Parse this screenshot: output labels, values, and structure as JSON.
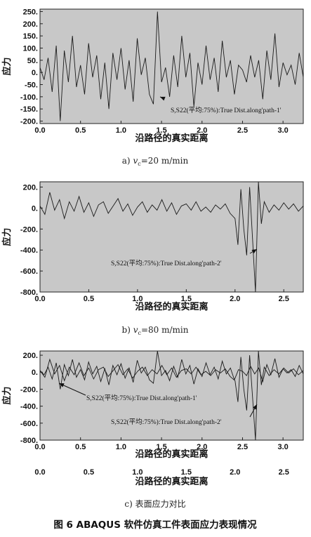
{
  "figure_title": "图 6   ABAQUS 软件仿真工件表面应力表现情况",
  "chart_data": [
    {
      "type": "line",
      "caption": "a)  v_c = 20 m/min",
      "caption_prefix": "a)",
      "caption_var": "v",
      "caption_sub": "c",
      "caption_rest": "=20 m/min",
      "xlabel": "沿路径的真实距离",
      "ylabel": "应力",
      "xlim": [
        0,
        3.25
      ],
      "ylim": [
        -210,
        260
      ],
      "xticks": [
        "0.0",
        "0.5",
        "1.0",
        "1.5",
        "2.0",
        "2.5",
        "3.0"
      ],
      "yticks": [
        "250.",
        "200.",
        "150.",
        "100.",
        "50.",
        "0.",
        "-50.",
        "-100.",
        "-150.",
        "-200."
      ],
      "background": "#c8c8c8",
      "annotations": [
        "S,S22(平均:75%):True Dist.along'path-1'"
      ],
      "series": [
        {
          "x": [
            0,
            0.05,
            0.1,
            0.15,
            0.2,
            0.25,
            0.3,
            0.35,
            0.4,
            0.45,
            0.5,
            0.55,
            0.6,
            0.65,
            0.7,
            0.75,
            0.8,
            0.85,
            0.9,
            0.95,
            1.0,
            1.05,
            1.1,
            1.15,
            1.2,
            1.25,
            1.3,
            1.35,
            1.4,
            1.45,
            1.5,
            1.55,
            1.6,
            1.65,
            1.7,
            1.75,
            1.8,
            1.85,
            1.9,
            1.95,
            2.0,
            2.05,
            2.1,
            2.15,
            2.2,
            2.25,
            2.3,
            2.35,
            2.4,
            2.45,
            2.5,
            2.55,
            2.6,
            2.65,
            2.7,
            2.75,
            2.8,
            2.85,
            2.9,
            2.95,
            3.0,
            3.05,
            3.1,
            3.15,
            3.2,
            3.25
          ],
          "values": [
            20,
            -30,
            60,
            -80,
            110,
            -200,
            90,
            -40,
            150,
            -60,
            30,
            -90,
            120,
            -20,
            70,
            -110,
            40,
            -150,
            80,
            -30,
            100,
            -70,
            50,
            -120,
            140,
            -10,
            60,
            -90,
            -130,
            250,
            -40,
            20,
            -100,
            70,
            -60,
            150,
            -20,
            80,
            -140,
            40,
            -50,
            110,
            -30,
            60,
            -80,
            130,
            -20,
            50,
            -90,
            30,
            10,
            -40,
            70,
            -20,
            50,
            -110,
            90,
            -30,
            160,
            -60,
            40,
            -10,
            30,
            -50,
            80,
            -20
          ]
        }
      ]
    },
    {
      "type": "line",
      "caption": "b)  v_c = 80 m/min",
      "caption_prefix": "b)",
      "caption_var": "v",
      "caption_sub": "c",
      "caption_rest": "=80 m/min",
      "xlabel": "沿路径的真实距离",
      "ylabel": "应力",
      "xlim": [
        0,
        2.7
      ],
      "ylim": [
        -800,
        250
      ],
      "xticks": [
        "0.0",
        "0.5",
        "1.0",
        "1.5",
        "2.0",
        "2.5"
      ],
      "yticks": [
        "200.",
        "0.",
        "-200.",
        "-400.",
        "-600.",
        "-800."
      ],
      "background": "#c8c8c8",
      "annotations": [
        "S,S22(平均:75%):True Dist.along'path-2'"
      ],
      "series": [
        {
          "x": [
            0,
            0.05,
            0.1,
            0.15,
            0.2,
            0.25,
            0.3,
            0.35,
            0.4,
            0.45,
            0.5,
            0.55,
            0.6,
            0.65,
            0.7,
            0.75,
            0.8,
            0.85,
            0.9,
            0.95,
            1.0,
            1.05,
            1.1,
            1.15,
            1.2,
            1.25,
            1.3,
            1.35,
            1.4,
            1.45,
            1.5,
            1.55,
            1.6,
            1.65,
            1.7,
            1.75,
            1.8,
            1.85,
            1.9,
            1.95,
            2.0,
            2.03,
            2.06,
            2.09,
            2.12,
            2.15,
            2.18,
            2.21,
            2.24,
            2.27,
            2.3,
            2.35,
            2.4,
            2.45,
            2.5,
            2.55,
            2.6,
            2.65,
            2.7
          ],
          "values": [
            20,
            -60,
            150,
            -20,
            80,
            -100,
            60,
            -30,
            110,
            -40,
            50,
            -80,
            30,
            60,
            -50,
            20,
            90,
            -30,
            40,
            -70,
            10,
            60,
            -40,
            30,
            -20,
            80,
            -30,
            50,
            -60,
            20,
            40,
            -20,
            60,
            -30,
            10,
            -40,
            30,
            -10,
            40,
            -50,
            -100,
            -350,
            180,
            -200,
            -450,
            200,
            -300,
            -800,
            250,
            -150,
            60,
            -40,
            30,
            -20,
            50,
            -10,
            40,
            -30,
            20
          ]
        }
      ]
    },
    {
      "type": "line",
      "caption": "c)  表面应力对比",
      "caption_prefix": "c)",
      "caption_var": "",
      "caption_sub": "",
      "caption_rest": "表面应力对比",
      "xlabel": "沿路径的真实距离",
      "ylabel": "应力",
      "xlim": [
        0,
        3.25
      ],
      "xlim2": [
        0,
        2.7
      ],
      "ylim": [
        -800,
        250
      ],
      "xticks": [
        "0.0",
        "0.5",
        "1.0",
        "1.5",
        "2.0",
        "2.5",
        "3.0"
      ],
      "xticks2": [
        "0.0",
        "0.5",
        "1.0",
        "1.5",
        "2.0",
        "2.5"
      ],
      "yticks": [
        "200.",
        "0.",
        "-200.",
        "-400.",
        "-600.",
        "-800."
      ],
      "background": "#c8c8c8",
      "annotations": [
        "S,S22(平均:75%):True Dist.along'path-1'",
        "S,S22(平均:75%):True Dist.along'path-2'"
      ],
      "series": [
        {
          "x": [
            0,
            0.05,
            0.1,
            0.15,
            0.2,
            0.25,
            0.3,
            0.35,
            0.4,
            0.45,
            0.5,
            0.55,
            0.6,
            0.65,
            0.7,
            0.75,
            0.8,
            0.85,
            0.9,
            0.95,
            1.0,
            1.05,
            1.1,
            1.15,
            1.2,
            1.25,
            1.3,
            1.35,
            1.4,
            1.45,
            1.5,
            1.55,
            1.6,
            1.65,
            1.7,
            1.75,
            1.8,
            1.85,
            1.9,
            1.95,
            2.0,
            2.05,
            2.1,
            2.15,
            2.2,
            2.25,
            2.3,
            2.35,
            2.4,
            2.45,
            2.5,
            2.55,
            2.6,
            2.65,
            2.7,
            2.75,
            2.8,
            2.85,
            2.9,
            2.95,
            3.0,
            3.05,
            3.1,
            3.15,
            3.2,
            3.25
          ],
          "values": [
            20,
            -30,
            60,
            -80,
            110,
            -200,
            90,
            -40,
            150,
            -60,
            30,
            -90,
            120,
            -20,
            70,
            -110,
            40,
            -150,
            80,
            -30,
            100,
            -70,
            50,
            -120,
            140,
            -10,
            60,
            -90,
            -130,
            250,
            -40,
            20,
            -100,
            70,
            -60,
            150,
            -20,
            80,
            -140,
            40,
            -50,
            110,
            -30,
            60,
            -80,
            130,
            -20,
            50,
            -90,
            30,
            10,
            -40,
            70,
            -20,
            50,
            -110,
            90,
            -30,
            160,
            -60,
            40,
            -10,
            30,
            -50,
            80,
            -20
          ]
        },
        {
          "x": [
            0,
            0.05,
            0.1,
            0.15,
            0.2,
            0.25,
            0.3,
            0.35,
            0.4,
            0.45,
            0.5,
            0.55,
            0.6,
            0.65,
            0.7,
            0.75,
            0.8,
            0.85,
            0.9,
            0.95,
            1.0,
            1.05,
            1.1,
            1.15,
            1.2,
            1.25,
            1.3,
            1.35,
            1.4,
            1.45,
            1.5,
            1.55,
            1.6,
            1.65,
            1.7,
            1.75,
            1.8,
            1.85,
            1.9,
            1.95,
            2.0,
            2.03,
            2.06,
            2.09,
            2.12,
            2.15,
            2.18,
            2.21,
            2.24,
            2.27,
            2.3,
            2.35,
            2.4,
            2.45,
            2.5,
            2.55,
            2.6,
            2.65,
            2.7
          ],
          "values": [
            20,
            -60,
            150,
            -20,
            80,
            -100,
            60,
            -30,
            110,
            -40,
            50,
            -80,
            30,
            60,
            -50,
            20,
            90,
            -30,
            40,
            -70,
            10,
            60,
            -40,
            30,
            -20,
            80,
            -30,
            50,
            -60,
            20,
            40,
            -20,
            60,
            -30,
            10,
            -40,
            30,
            -10,
            40,
            -50,
            -100,
            -350,
            180,
            -200,
            -450,
            200,
            -300,
            -800,
            250,
            -150,
            60,
            -40,
            30,
            -20,
            50,
            -10,
            40,
            -30,
            20
          ]
        }
      ]
    }
  ]
}
